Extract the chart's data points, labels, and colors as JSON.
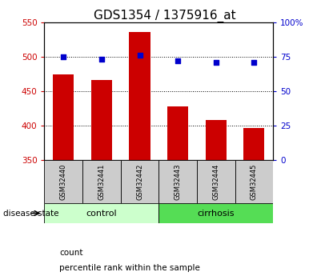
{
  "title": "GDS1354 / 1375916_at",
  "samples": [
    "GSM32440",
    "GSM32441",
    "GSM32442",
    "GSM32443",
    "GSM32444",
    "GSM32445"
  ],
  "counts": [
    474,
    466,
    536,
    428,
    408,
    397
  ],
  "percentiles": [
    75,
    73,
    76,
    72,
    71,
    71
  ],
  "ylim_left": [
    350,
    550
  ],
  "ylim_right": [
    0,
    100
  ],
  "yticks_left": [
    350,
    400,
    450,
    500,
    550
  ],
  "yticks_right": [
    0,
    25,
    50,
    75,
    100
  ],
  "bar_color": "#cc0000",
  "dot_color": "#0000cc",
  "control_color": "#ccffcc",
  "cirrhosis_color": "#55dd55",
  "sample_box_color": "#cccccc",
  "title_fontsize": 11,
  "axis_color_left": "#cc0000",
  "axis_color_right": "#0000cc",
  "legend_items": [
    "count",
    "percentile rank within the sample"
  ],
  "disease_state_label": "disease state"
}
